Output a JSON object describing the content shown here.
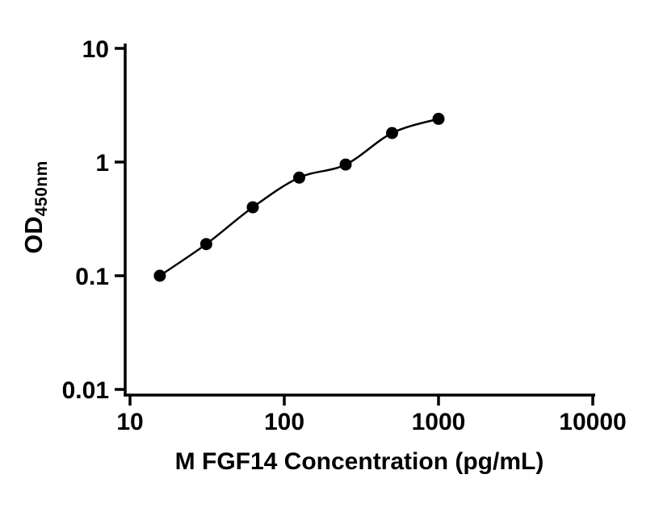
{
  "chart_data": {
    "type": "scatter",
    "x": [
      15.6,
      31.2,
      62.5,
      125,
      250,
      500,
      1000
    ],
    "y": [
      0.1,
      0.19,
      0.4,
      0.73,
      0.95,
      1.8,
      2.4
    ],
    "xlabel": "M FGF14 Concentration (pg/mL)",
    "ylabel_main": "OD",
    "ylabel_sub": "450nm",
    "xscale": "log",
    "yscale": "log",
    "xlim": [
      10,
      10000
    ],
    "ylim": [
      0.01,
      10
    ],
    "x_ticks": [
      10,
      100,
      1000,
      10000
    ],
    "x_tick_labels": [
      "10",
      "100",
      "1000",
      "10000"
    ],
    "y_ticks": [
      0.01,
      0.1,
      1,
      10
    ],
    "y_tick_labels": [
      "0.01",
      "0.1",
      "1",
      "10"
    ],
    "grid": false,
    "legend": "none",
    "marker_color": "#000000",
    "line_color": "#000000",
    "axis_color": "#000000",
    "background": "#ffffff"
  }
}
